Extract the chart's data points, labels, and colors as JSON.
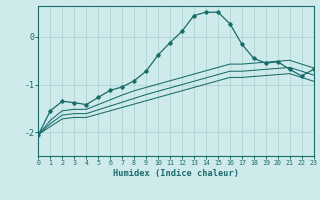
{
  "xlabel": "Humidex (Indice chaleur)",
  "background_color": "#ceeaea",
  "line_color": "#1a6b6b",
  "grid_color": "#aacfcf",
  "x_ticks": [
    0,
    1,
    2,
    3,
    4,
    5,
    6,
    7,
    8,
    9,
    10,
    11,
    12,
    13,
    14,
    15,
    16,
    17,
    18,
    19,
    20,
    21,
    22,
    23
  ],
  "ylim": [
    -2.5,
    0.65
  ],
  "xlim": [
    0,
    23
  ],
  "yticks": [
    -2,
    -1,
    0
  ],
  "curve1_y": [
    -2.05,
    -1.55,
    -1.35,
    -1.38,
    -1.42,
    -1.27,
    -1.12,
    -1.05,
    -0.92,
    -0.72,
    -0.38,
    -0.12,
    0.12,
    0.45,
    0.52,
    0.52,
    0.28,
    -0.15,
    -0.45,
    -0.55,
    -0.52,
    -0.68,
    -0.82,
    -0.68
  ],
  "curve2_y": [
    -2.05,
    -1.75,
    -1.55,
    -1.52,
    -1.52,
    -1.42,
    -1.32,
    -1.22,
    -1.13,
    -1.06,
    -0.99,
    -0.92,
    -0.85,
    -0.78,
    -0.71,
    -0.64,
    -0.57,
    -0.57,
    -0.55,
    -0.53,
    -0.51,
    -0.49,
    -0.57,
    -0.65
  ],
  "curve3_y": [
    -2.05,
    -1.82,
    -1.64,
    -1.61,
    -1.61,
    -1.53,
    -1.45,
    -1.37,
    -1.29,
    -1.21,
    -1.14,
    -1.07,
    -1.0,
    -0.93,
    -0.86,
    -0.79,
    -0.72,
    -0.72,
    -0.7,
    -0.68,
    -0.66,
    -0.64,
    -0.72,
    -0.8
  ],
  "curve4_y": [
    -2.05,
    -1.88,
    -1.72,
    -1.69,
    -1.69,
    -1.62,
    -1.55,
    -1.48,
    -1.41,
    -1.34,
    -1.27,
    -1.2,
    -1.13,
    -1.06,
    -0.99,
    -0.92,
    -0.85,
    -0.85,
    -0.83,
    -0.81,
    -0.79,
    -0.77,
    -0.85,
    -0.93
  ]
}
